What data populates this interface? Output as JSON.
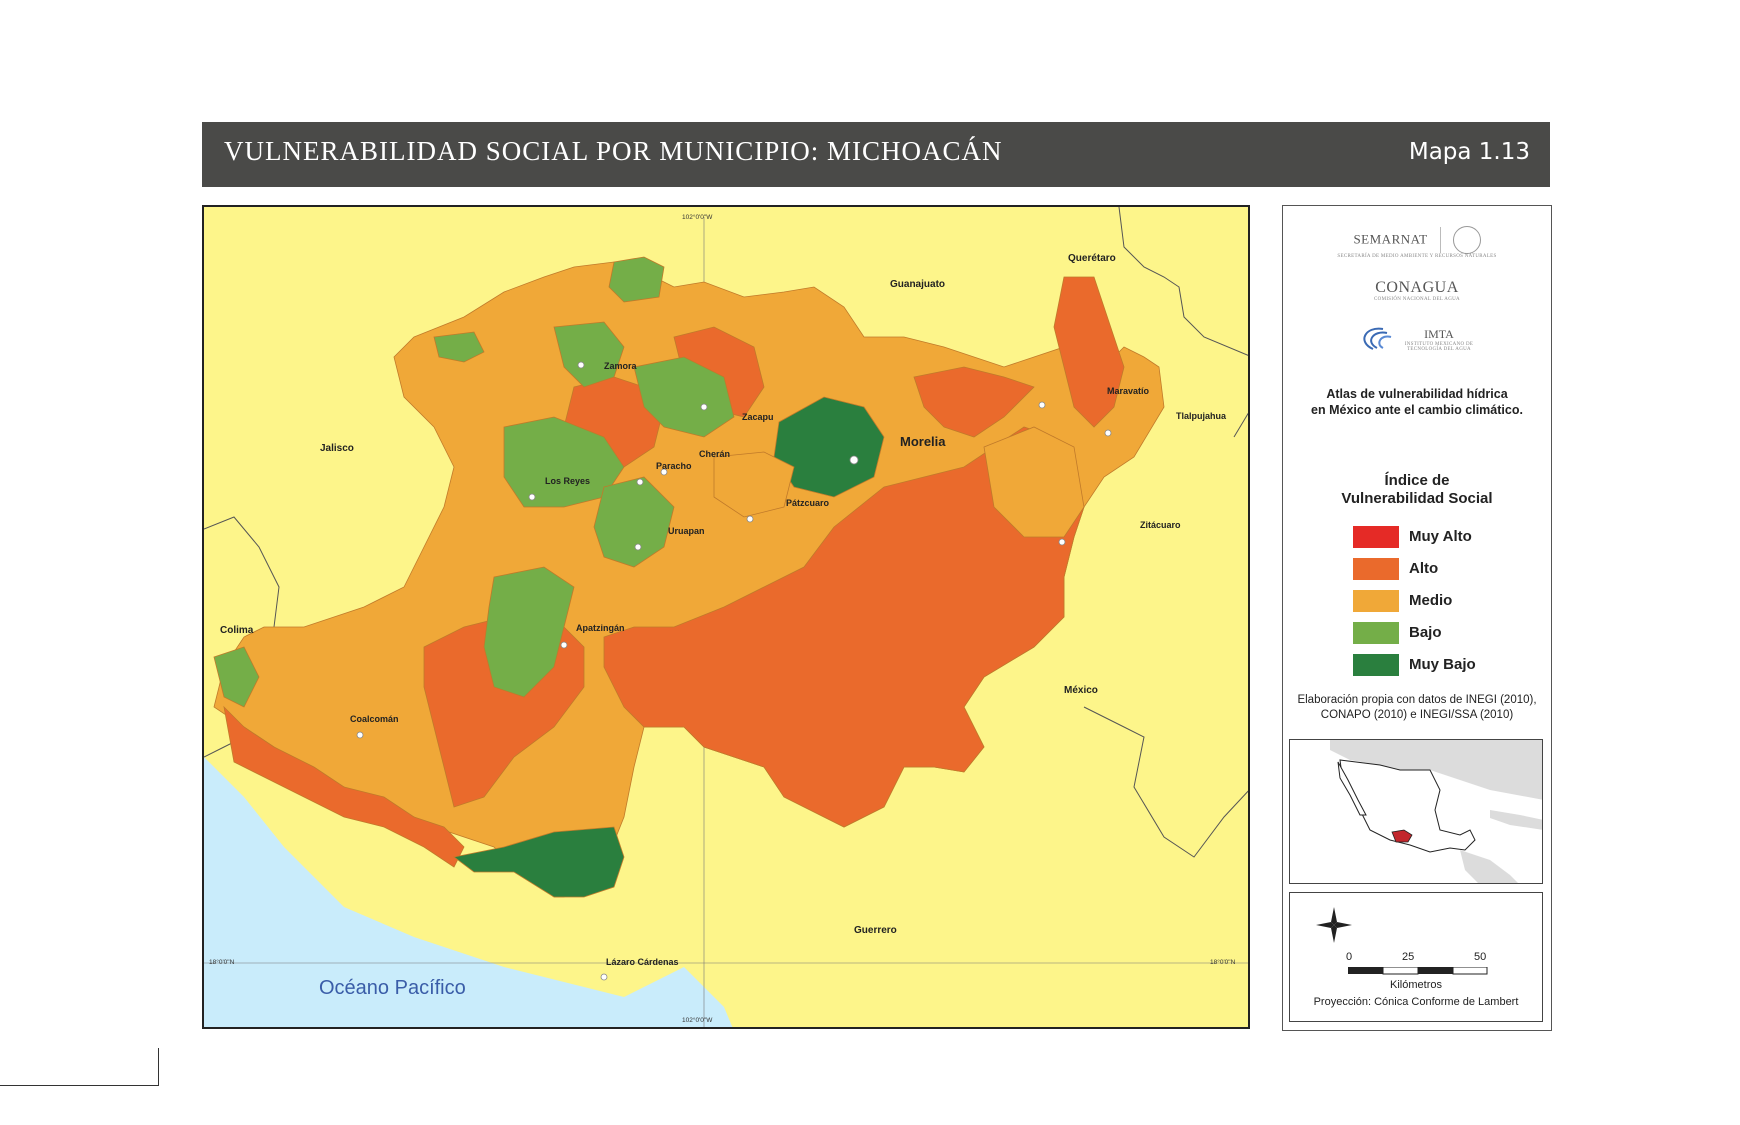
{
  "header": {
    "title": "VULNERABILIDAD SOCIAL POR MUNICIPIO: MICHOACÁN",
    "map_number": "Mapa 1.13"
  },
  "map": {
    "ocean_label": "Océano Pacífico",
    "neighbor_labels": [
      "Guanajuato",
      "Querétaro",
      "Jalisco",
      "Colima",
      "México",
      "Guerrero"
    ],
    "city_labels": [
      "Zamora",
      "Zacapu",
      "Morelia",
      "Maravatío",
      "Tlalpujahua",
      "Cherán",
      "Paracho",
      "Los Reyes",
      "Pátzcuaro",
      "Uruapan",
      "Zitácuaro",
      "Apatzingán",
      "Coalcomán",
      "Lázaro Cárdenas"
    ],
    "capital": "Morelia",
    "coordinates": {
      "meridian_top": "102°0'0\"W",
      "meridian_bottom": "102°0'0\"W",
      "parallel_left": "18°0'0\"N",
      "parallel_right": "18°0'0\"N"
    },
    "colors": {
      "land_outside": "#fdf58a",
      "ocean": "#c9ecfb",
      "muy_alto": "#e52a26",
      "alto": "#ea6a2c",
      "medio": "#f0a838",
      "bajo": "#74ae48",
      "muy_bajo": "#2a7f3e"
    }
  },
  "logos": {
    "semarnat": "SEMARNAT",
    "semarnat_sub": "SECRETARÍA DE MEDIO AMBIENTE Y RECURSOS NATURALES",
    "conagua": "CONAGUA",
    "conagua_sub": "COMISIÓN NACIONAL DEL AGUA",
    "imta": "IMTA",
    "imta_sub": "INSTITUTO MEXICANO DE TECNOLOGÍA DEL AGUA"
  },
  "atlas": {
    "line1": "Atlas de vulnerabilidad  hídrica",
    "line2": "en México ante el cambio climático."
  },
  "legend": {
    "title_line1": "Índice de",
    "title_line2": "Vulnerabilidad Social",
    "items": [
      {
        "label": "Muy Alto",
        "color": "#e52a26"
      },
      {
        "label": "Alto",
        "color": "#ea6a2c"
      },
      {
        "label": "Medio",
        "color": "#f0a838"
      },
      {
        "label": "Bajo",
        "color": "#74ae48"
      },
      {
        "label": "Muy Bajo",
        "color": "#2a7f3e"
      }
    ]
  },
  "source": {
    "line1": "Elaboración propia con datos de INEGI (2010),",
    "line2": "CONAPO (2010) e INEGI/SSA (2010)"
  },
  "scale": {
    "ticks": [
      "0",
      "25",
      "50"
    ],
    "unit": "Kilómetros",
    "projection": "Proyección: Cónica Conforme de Lambert"
  }
}
